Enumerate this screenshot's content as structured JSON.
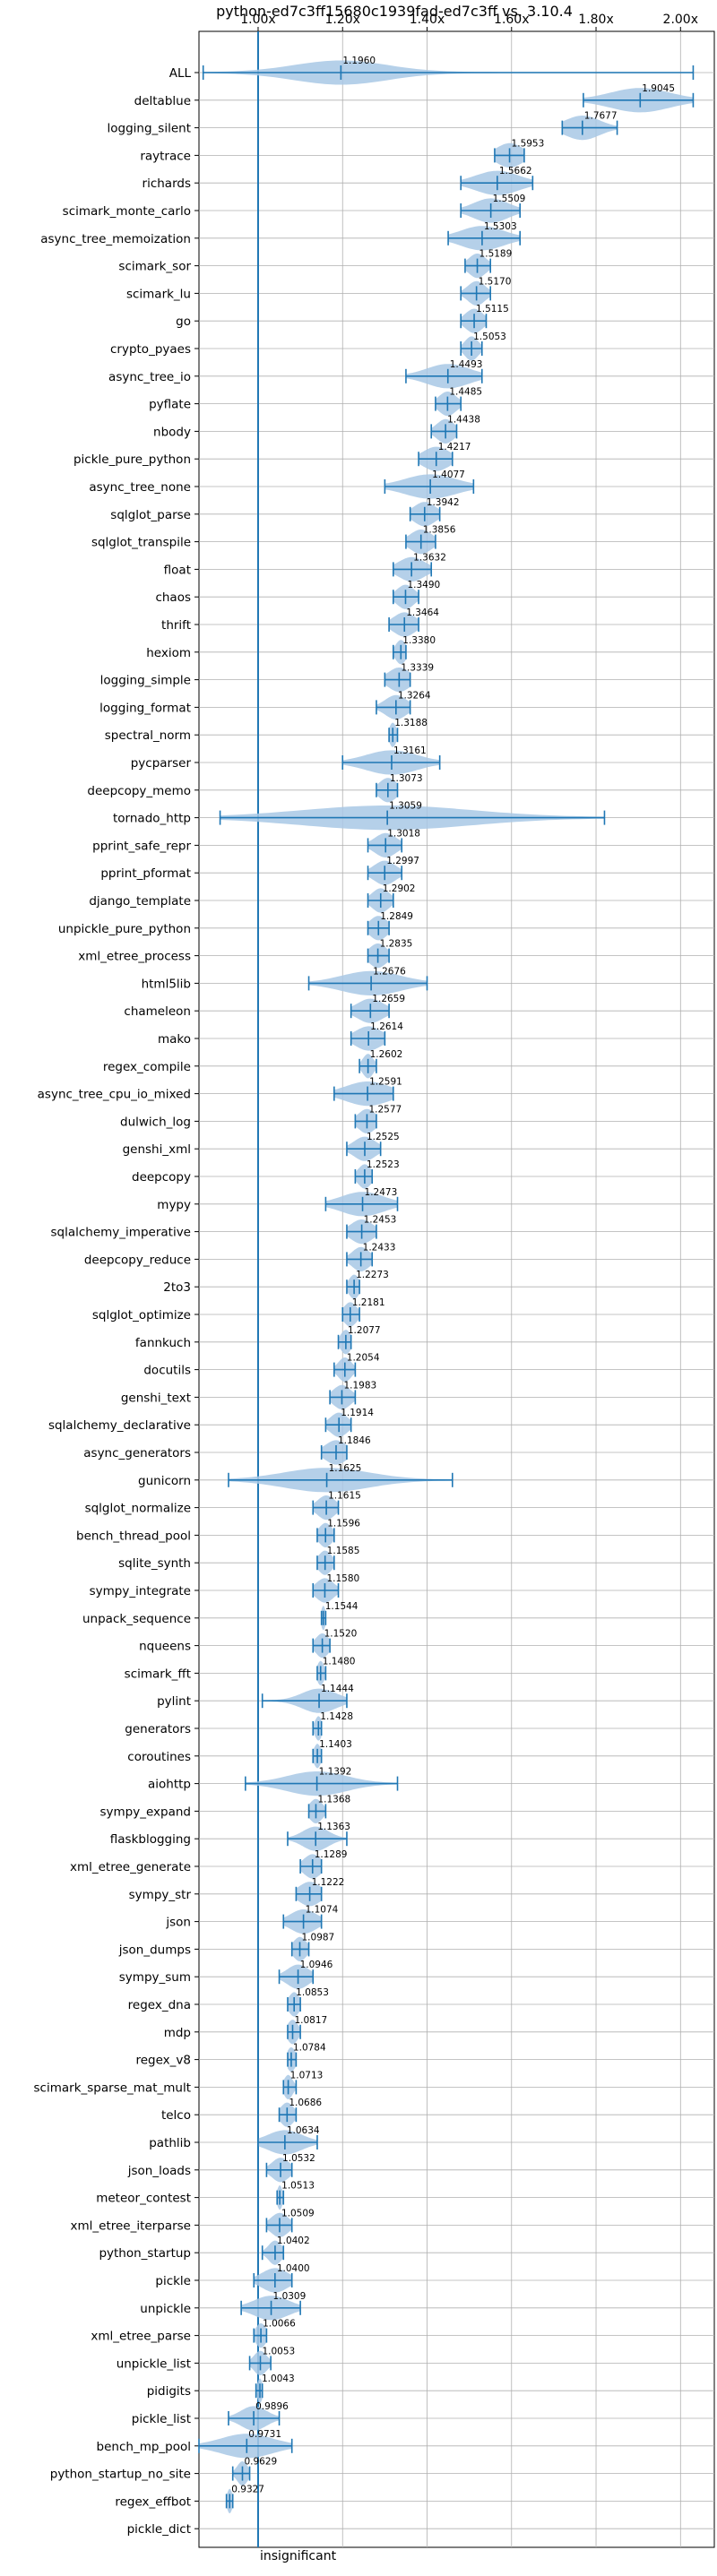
{
  "chart_data": {
    "type": "violin",
    "title": "python-ed7c3ff15680c1939fad-ed7c3ff vs. 3.10.4",
    "xlabel": "",
    "ylabel": "",
    "x_tick_labels": [
      "1.00x",
      "1.20x",
      "1.40x",
      "1.60x",
      "1.80x",
      "2.00x"
    ],
    "x_ticks": [
      1.0,
      1.2,
      1.4,
      1.6,
      1.8,
      2.0
    ],
    "xlim": [
      0.86,
      2.08
    ],
    "reference_line": 1.0,
    "grid": true,
    "annotation": "insignificant",
    "color": "#1f77b4",
    "fill_color": "#a8c8e5",
    "series": [
      {
        "name": "ALL",
        "value": 1.196,
        "min": 0.87,
        "max": 2.03,
        "spread": 0.11
      },
      {
        "name": "deltablue",
        "value": 1.9045,
        "min": 1.77,
        "max": 2.03,
        "spread": 0.07
      },
      {
        "name": "logging_silent",
        "value": 1.7677,
        "min": 1.72,
        "max": 1.85,
        "spread": 0.04
      },
      {
        "name": "raytrace",
        "value": 1.5953,
        "min": 1.56,
        "max": 1.63,
        "spread": 0.03
      },
      {
        "name": "richards",
        "value": 1.5662,
        "min": 1.48,
        "max": 1.65,
        "spread": 0.05
      },
      {
        "name": "scimark_monte_carlo",
        "value": 1.5509,
        "min": 1.48,
        "max": 1.62,
        "spread": 0.04
      },
      {
        "name": "async_tree_memoization",
        "value": 1.5303,
        "min": 1.45,
        "max": 1.62,
        "spread": 0.05
      },
      {
        "name": "scimark_sor",
        "value": 1.5189,
        "min": 1.49,
        "max": 1.55,
        "spread": 0.02
      },
      {
        "name": "scimark_lu",
        "value": 1.517,
        "min": 1.48,
        "max": 1.55,
        "spread": 0.02
      },
      {
        "name": "go",
        "value": 1.5115,
        "min": 1.48,
        "max": 1.54,
        "spread": 0.02
      },
      {
        "name": "crypto_pyaes",
        "value": 1.5053,
        "min": 1.48,
        "max": 1.53,
        "spread": 0.015
      },
      {
        "name": "async_tree_io",
        "value": 1.4493,
        "min": 1.35,
        "max": 1.53,
        "spread": 0.05
      },
      {
        "name": "pyflate",
        "value": 1.4485,
        "min": 1.42,
        "max": 1.48,
        "spread": 0.02
      },
      {
        "name": "nbody",
        "value": 1.4438,
        "min": 1.41,
        "max": 1.47,
        "spread": 0.02
      },
      {
        "name": "pickle_pure_python",
        "value": 1.4217,
        "min": 1.38,
        "max": 1.46,
        "spread": 0.03
      },
      {
        "name": "async_tree_none",
        "value": 1.4077,
        "min": 1.3,
        "max": 1.51,
        "spread": 0.06
      },
      {
        "name": "sqlglot_parse",
        "value": 1.3942,
        "min": 1.36,
        "max": 1.43,
        "spread": 0.025
      },
      {
        "name": "sqlglot_transpile",
        "value": 1.3856,
        "min": 1.35,
        "max": 1.42,
        "spread": 0.025
      },
      {
        "name": "float",
        "value": 1.3632,
        "min": 1.32,
        "max": 1.41,
        "spread": 0.03
      },
      {
        "name": "chaos",
        "value": 1.349,
        "min": 1.32,
        "max": 1.38,
        "spread": 0.02
      },
      {
        "name": "thrift",
        "value": 1.3464,
        "min": 1.31,
        "max": 1.38,
        "spread": 0.025
      },
      {
        "name": "hexiom",
        "value": 1.338,
        "min": 1.32,
        "max": 1.35,
        "spread": 0.012
      },
      {
        "name": "logging_simple",
        "value": 1.3339,
        "min": 1.3,
        "max": 1.36,
        "spread": 0.025
      },
      {
        "name": "logging_format",
        "value": 1.3264,
        "min": 1.28,
        "max": 1.36,
        "spread": 0.025
      },
      {
        "name": "spectral_norm",
        "value": 1.3188,
        "min": 1.31,
        "max": 1.33,
        "spread": 0.008
      },
      {
        "name": "pycparser",
        "value": 1.3161,
        "min": 1.2,
        "max": 1.43,
        "spread": 0.06
      },
      {
        "name": "deepcopy_memo",
        "value": 1.3073,
        "min": 1.28,
        "max": 1.33,
        "spread": 0.02
      },
      {
        "name": "tornado_http",
        "value": 1.3059,
        "min": 0.91,
        "max": 1.82,
        "spread": 0.2
      },
      {
        "name": "pprint_safe_repr",
        "value": 1.3018,
        "min": 1.26,
        "max": 1.34,
        "spread": 0.025
      },
      {
        "name": "pprint_pformat",
        "value": 1.2997,
        "min": 1.26,
        "max": 1.34,
        "spread": 0.025
      },
      {
        "name": "django_template",
        "value": 1.2902,
        "min": 1.26,
        "max": 1.32,
        "spread": 0.02
      },
      {
        "name": "unpickle_pure_python",
        "value": 1.2849,
        "min": 1.26,
        "max": 1.31,
        "spread": 0.02
      },
      {
        "name": "xml_etree_process",
        "value": 1.2835,
        "min": 1.26,
        "max": 1.31,
        "spread": 0.02
      },
      {
        "name": "html5lib",
        "value": 1.2676,
        "min": 1.12,
        "max": 1.4,
        "spread": 0.07
      },
      {
        "name": "chameleon",
        "value": 1.2659,
        "min": 1.22,
        "max": 1.31,
        "spread": 0.03
      },
      {
        "name": "mako",
        "value": 1.2614,
        "min": 1.22,
        "max": 1.3,
        "spread": 0.03
      },
      {
        "name": "regex_compile",
        "value": 1.2602,
        "min": 1.24,
        "max": 1.28,
        "spread": 0.012
      },
      {
        "name": "async_tree_cpu_io_mixed",
        "value": 1.2591,
        "min": 1.18,
        "max": 1.32,
        "spread": 0.05
      },
      {
        "name": "dulwich_log",
        "value": 1.2577,
        "min": 1.23,
        "max": 1.28,
        "spread": 0.02
      },
      {
        "name": "genshi_xml",
        "value": 1.2525,
        "min": 1.21,
        "max": 1.29,
        "spread": 0.025
      },
      {
        "name": "deepcopy",
        "value": 1.2523,
        "min": 1.23,
        "max": 1.27,
        "spread": 0.015
      },
      {
        "name": "mypy",
        "value": 1.2473,
        "min": 1.16,
        "max": 1.33,
        "spread": 0.05
      },
      {
        "name": "sqlalchemy_imperative",
        "value": 1.2453,
        "min": 1.21,
        "max": 1.28,
        "spread": 0.025
      },
      {
        "name": "deepcopy_reduce",
        "value": 1.2433,
        "min": 1.21,
        "max": 1.27,
        "spread": 0.02
      },
      {
        "name": "2to3",
        "value": 1.2273,
        "min": 1.21,
        "max": 1.24,
        "spread": 0.012
      },
      {
        "name": "sqlglot_optimize",
        "value": 1.2181,
        "min": 1.2,
        "max": 1.24,
        "spread": 0.015
      },
      {
        "name": "fannkuch",
        "value": 1.2077,
        "min": 1.19,
        "max": 1.22,
        "spread": 0.012
      },
      {
        "name": "docutils",
        "value": 1.2054,
        "min": 1.18,
        "max": 1.23,
        "spread": 0.015
      },
      {
        "name": "genshi_text",
        "value": 1.1983,
        "min": 1.17,
        "max": 1.23,
        "spread": 0.02
      },
      {
        "name": "sqlalchemy_declarative",
        "value": 1.1914,
        "min": 1.16,
        "max": 1.22,
        "spread": 0.02
      },
      {
        "name": "async_generators",
        "value": 1.1846,
        "min": 1.15,
        "max": 1.21,
        "spread": 0.025
      },
      {
        "name": "gunicorn",
        "value": 1.1625,
        "min": 0.93,
        "max": 1.46,
        "spread": 0.1
      },
      {
        "name": "sqlglot_normalize",
        "value": 1.1615,
        "min": 1.13,
        "max": 1.19,
        "spread": 0.02
      },
      {
        "name": "bench_thread_pool",
        "value": 1.1596,
        "min": 1.14,
        "max": 1.18,
        "spread": 0.015
      },
      {
        "name": "sqlite_synth",
        "value": 1.1585,
        "min": 1.14,
        "max": 1.18,
        "spread": 0.015
      },
      {
        "name": "sympy_integrate",
        "value": 1.158,
        "min": 1.13,
        "max": 1.19,
        "spread": 0.02
      },
      {
        "name": "unpack_sequence",
        "value": 1.1544,
        "min": 1.15,
        "max": 1.16,
        "spread": 0.005
      },
      {
        "name": "nqueens",
        "value": 1.152,
        "min": 1.13,
        "max": 1.17,
        "spread": 0.015
      },
      {
        "name": "scimark_fft",
        "value": 1.148,
        "min": 1.14,
        "max": 1.16,
        "spread": 0.008
      },
      {
        "name": "pylint",
        "value": 1.1444,
        "min": 1.01,
        "max": 1.21,
        "spread": 0.04
      },
      {
        "name": "generators",
        "value": 1.1428,
        "min": 1.13,
        "max": 1.15,
        "spread": 0.008
      },
      {
        "name": "coroutines",
        "value": 1.1403,
        "min": 1.13,
        "max": 1.15,
        "spread": 0.008
      },
      {
        "name": "aiohttp",
        "value": 1.1392,
        "min": 0.97,
        "max": 1.33,
        "spread": 0.07
      },
      {
        "name": "sympy_expand",
        "value": 1.1368,
        "min": 1.12,
        "max": 1.16,
        "spread": 0.015
      },
      {
        "name": "flaskblogging",
        "value": 1.1363,
        "min": 1.07,
        "max": 1.21,
        "spread": 0.03
      },
      {
        "name": "xml_etree_generate",
        "value": 1.1289,
        "min": 1.1,
        "max": 1.15,
        "spread": 0.02
      },
      {
        "name": "sympy_str",
        "value": 1.1222,
        "min": 1.09,
        "max": 1.15,
        "spread": 0.025
      },
      {
        "name": "json",
        "value": 1.1074,
        "min": 1.06,
        "max": 1.15,
        "spread": 0.03
      },
      {
        "name": "json_dumps",
        "value": 1.0987,
        "min": 1.08,
        "max": 1.12,
        "spread": 0.015
      },
      {
        "name": "sympy_sum",
        "value": 1.0946,
        "min": 1.05,
        "max": 1.13,
        "spread": 0.025
      },
      {
        "name": "regex_dna",
        "value": 1.0853,
        "min": 1.07,
        "max": 1.1,
        "spread": 0.012
      },
      {
        "name": "mdp",
        "value": 1.0817,
        "min": 1.07,
        "max": 1.1,
        "spread": 0.012
      },
      {
        "name": "regex_v8",
        "value": 1.0784,
        "min": 1.07,
        "max": 1.09,
        "spread": 0.01
      },
      {
        "name": "scimark_sparse_mat_mult",
        "value": 1.0713,
        "min": 1.06,
        "max": 1.09,
        "spread": 0.01
      },
      {
        "name": "telco",
        "value": 1.0686,
        "min": 1.05,
        "max": 1.09,
        "spread": 0.015
      },
      {
        "name": "pathlib",
        "value": 1.0634,
        "min": 1.0,
        "max": 1.14,
        "spread": 0.04
      },
      {
        "name": "json_loads",
        "value": 1.0532,
        "min": 1.02,
        "max": 1.08,
        "spread": 0.02
      },
      {
        "name": "meteor_contest",
        "value": 1.0513,
        "min": 1.045,
        "max": 1.06,
        "spread": 0.006
      },
      {
        "name": "xml_etree_iterparse",
        "value": 1.0509,
        "min": 1.02,
        "max": 1.08,
        "spread": 0.02
      },
      {
        "name": "python_startup",
        "value": 1.0402,
        "min": 1.01,
        "max": 1.06,
        "spread": 0.015
      },
      {
        "name": "pickle",
        "value": 1.04,
        "min": 0.99,
        "max": 1.08,
        "spread": 0.03
      },
      {
        "name": "unpickle",
        "value": 1.0309,
        "min": 0.96,
        "max": 1.1,
        "spread": 0.04
      },
      {
        "name": "xml_etree_parse",
        "value": 1.0066,
        "min": 0.99,
        "max": 1.02,
        "spread": 0.012
      },
      {
        "name": "unpickle_list",
        "value": 1.0053,
        "min": 0.98,
        "max": 1.03,
        "spread": 0.015
      },
      {
        "name": "pidigits",
        "value": 1.0043,
        "min": 0.995,
        "max": 1.01,
        "spread": 0.006
      },
      {
        "name": "pickle_list",
        "value": 0.9896,
        "min": 0.93,
        "max": 1.05,
        "spread": 0.03
      },
      {
        "name": "bench_mp_pool",
        "value": 0.9731,
        "min": 0.86,
        "max": 1.08,
        "spread": 0.06
      },
      {
        "name": "python_startup_no_site",
        "value": 0.9629,
        "min": 0.94,
        "max": 0.98,
        "spread": 0.012
      },
      {
        "name": "regex_effbot",
        "value": 0.9327,
        "min": 0.925,
        "max": 0.94,
        "spread": 0.006
      },
      {
        "name": "pickle_dict",
        "value": null,
        "min": null,
        "max": null,
        "spread": null
      }
    ]
  }
}
